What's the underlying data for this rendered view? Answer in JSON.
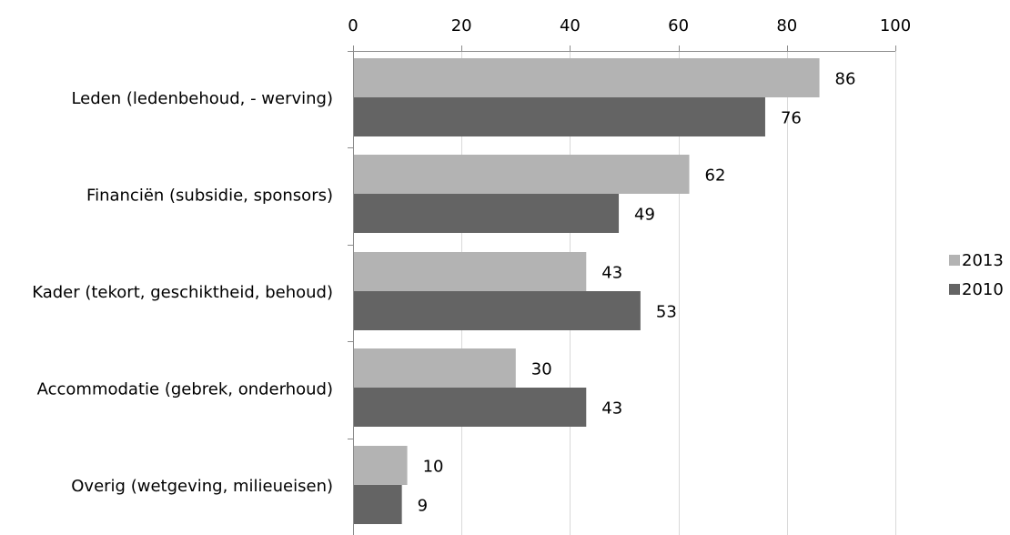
{
  "chart_data": {
    "type": "bar",
    "orientation": "horizontal",
    "title": "",
    "xlabel": "",
    "ylabel": "",
    "xlim": [
      0,
      100
    ],
    "x_ticks": [
      0,
      20,
      40,
      60,
      80,
      100
    ],
    "grid": true,
    "legend_position": "right",
    "categories": [
      "Leden (ledenbehoud, - werving)",
      "Financiën (subsidie, sponsors)",
      "Kader (tekort, geschiktheid, behoud)",
      "Accommodatie (gebrek, onderhoud)",
      "Overig (wetgeving, milieueisen)"
    ],
    "series": [
      {
        "name": "2013",
        "color": "#b3b3b3",
        "values": [
          86,
          62,
          43,
          30,
          10
        ]
      },
      {
        "name": "2010",
        "color": "#646464",
        "values": [
          76,
          49,
          53,
          43,
          9
        ]
      }
    ]
  }
}
